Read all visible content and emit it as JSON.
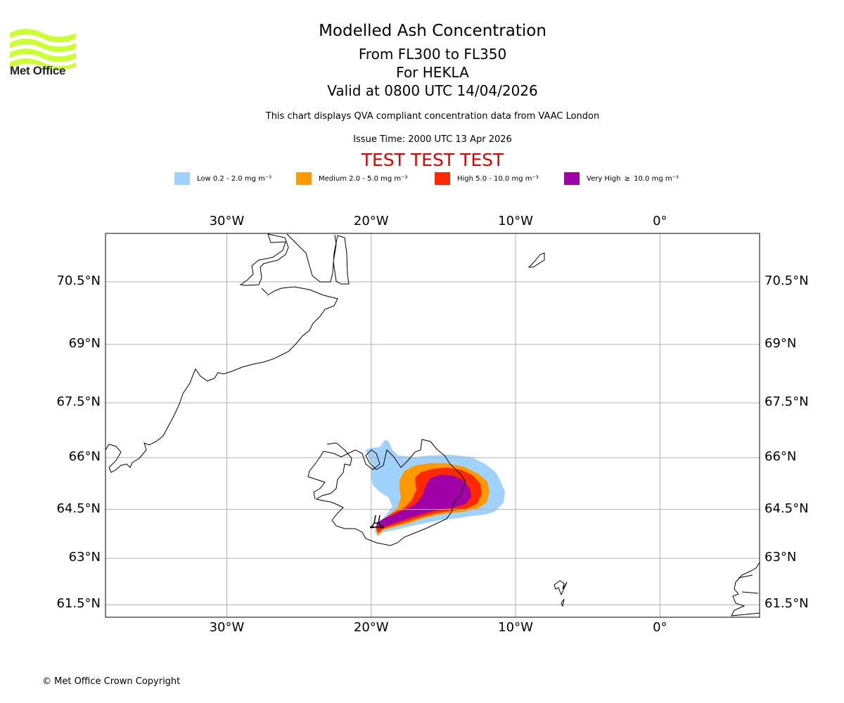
{
  "logo": {
    "text": "Met Office",
    "icon": "met-office-waves-logo",
    "color": "#ccff33"
  },
  "header": {
    "title": "Modelled Ash Concentration",
    "levels": "From FL300 to FL350",
    "volcano": "For HEKLA",
    "valid": "Valid at 0800 UTC 14/04/2026",
    "subtitle": "This chart displays QVA compliant concentration data from VAAC London",
    "issue_time": "Issue Time: 2000 UTC 13 Apr 2026",
    "test_banner": "TEST TEST TEST",
    "test_color": "#e00000"
  },
  "legend": [
    {
      "label": "Low 0.2 - 2.0 mg m⁻³",
      "color": "#a0d2ff"
    },
    {
      "label": "Medium 2.0 - 5.0 mg m⁻³",
      "color": "#ff9900"
    },
    {
      "label": "High 5.0 - 10.0 mg m⁻³",
      "color": "#ff2800"
    },
    {
      "label": "Very High  ≥  10.0 mg m⁻³",
      "color": "#a000a8"
    }
  ],
  "map": {
    "projection": "mercator",
    "lon_range": [
      -38.4,
      6.9
    ],
    "lat_range": [
      60.8,
      71.8
    ],
    "lon_ticks": [
      {
        "value": -30,
        "label": "30°W"
      },
      {
        "value": -20,
        "label": "20°W"
      },
      {
        "value": -10,
        "label": "10°W"
      },
      {
        "value": 0,
        "label": "0°"
      }
    ],
    "lat_ticks": [
      {
        "value": 70.5,
        "label": "70.5°N"
      },
      {
        "value": 69,
        "label": "69°N"
      },
      {
        "value": 67.5,
        "label": "67.5°N"
      },
      {
        "value": 66,
        "label": "66°N"
      },
      {
        "value": 64.5,
        "label": "64.5°N"
      },
      {
        "value": 63,
        "label": "63°N"
      },
      {
        "value": 61.5,
        "label": "61.5°N"
      }
    ],
    "volcano": {
      "name": "HEKLA",
      "lon": -19.7,
      "lat": 63.99,
      "icon": "volcano-symbol-icon"
    },
    "grid": true
  },
  "footer": {
    "copyright": "© Met Office Crown Copyright"
  }
}
